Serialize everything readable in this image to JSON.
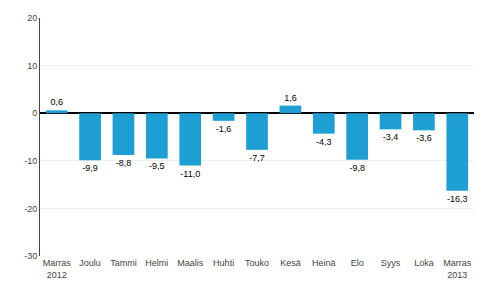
{
  "chart_data": {
    "type": "bar",
    "categories": [
      "Marras\n2012",
      "Joulu",
      "Tammi",
      "Helmi",
      "Maalis",
      "Huhti",
      "Touko",
      "Kesä",
      "Heinä",
      "Elo",
      "Syys",
      "Loka",
      "Marras\n2013"
    ],
    "values": [
      0.6,
      -9.9,
      -8.8,
      -9.5,
      -11.0,
      -1.6,
      -7.7,
      1.6,
      -4.3,
      -9.8,
      -3.4,
      -3.6,
      -16.3
    ],
    "value_labels": [
      "0,6",
      "-9,9",
      "-8,8",
      "-9,5",
      "-11,0",
      "-1,6",
      "-7,7",
      "1,6",
      "-4,3",
      "-9,8",
      "-3,4",
      "-3,6",
      "-16,3"
    ],
    "data_labels": true,
    "color": "#1e9fd4",
    "ylim": [
      -30,
      20
    ],
    "yticks": [
      -30,
      -20,
      -10,
      0,
      10,
      20
    ],
    "grid": true
  }
}
